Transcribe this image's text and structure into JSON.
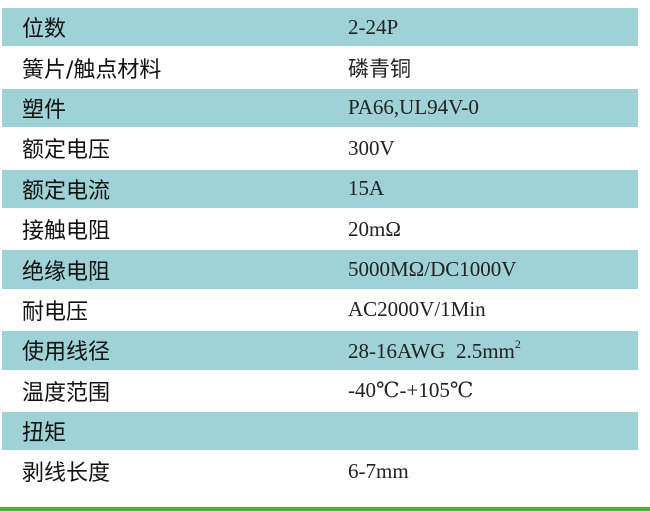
{
  "rows": [
    {
      "label": "位数",
      "value": "2-24P"
    },
    {
      "label": "簧片/触点材料",
      "value": "磷青铜"
    },
    {
      "label": "塑件",
      "value": "PA66,UL94V-0"
    },
    {
      "label": "额定电压",
      "value": "300V"
    },
    {
      "label": "额定电流",
      "value": "15A"
    },
    {
      "label": "接触电阻",
      "value": "20mΩ"
    },
    {
      "label": "绝缘电阻",
      "value": "5000MΩ/DC1000V"
    },
    {
      "label": "耐电压",
      "value": "AC2000V/1Min"
    },
    {
      "label": "使用线径",
      "value": "28-16AWG  2.5mm",
      "sup": "2"
    },
    {
      "label": "温度范围",
      "value": "-40℃-+105℃"
    },
    {
      "label": "扭矩",
      "value": ""
    },
    {
      "label": "剥线长度",
      "value": "6-7mm"
    }
  ],
  "colors": {
    "shaded_row": "#9fd2d6",
    "bottom_rule": "#4caf3c"
  }
}
